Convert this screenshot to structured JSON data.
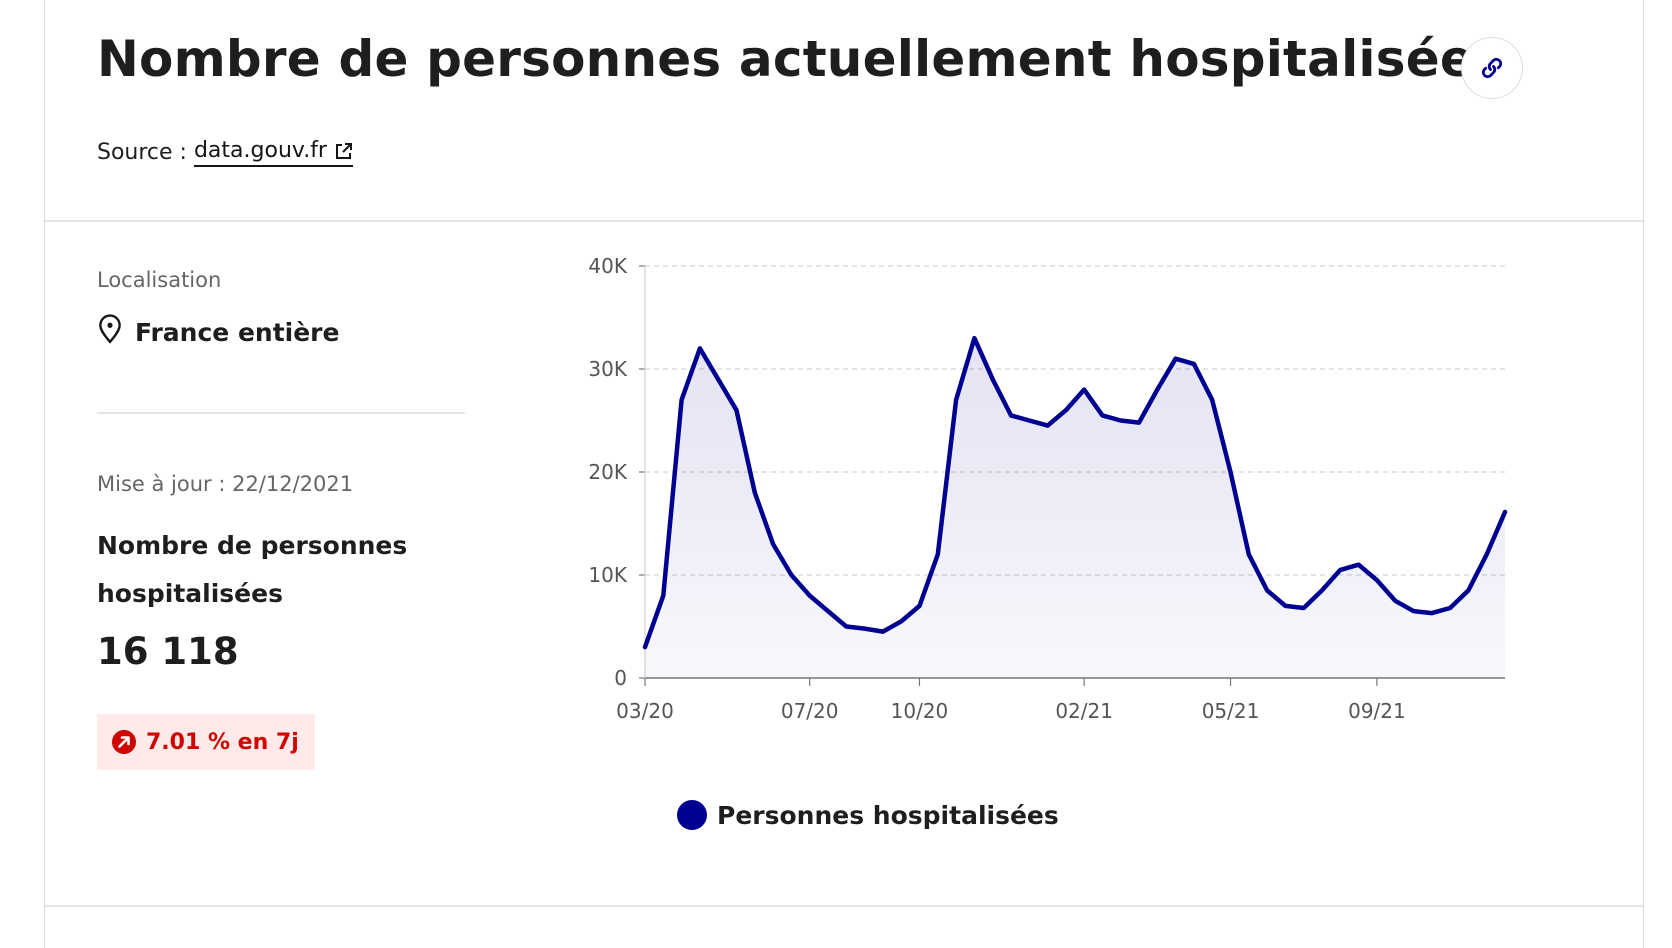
{
  "header": {
    "title": "Nombre de personnes actuellement hospitalisées",
    "link_icon": "link-icon",
    "source_label": "Source :",
    "source_link": "data.gouv.fr",
    "external_icon": "external-link-icon"
  },
  "sidebar": {
    "location_label": "Localisation",
    "location_icon": "map-pin-icon",
    "location_value": "France entière",
    "update_text": "Mise à jour : 22/12/2021",
    "metric_label": "Nombre de personnes hospitalisées",
    "metric_value": "16 118",
    "trend_icon": "arrow-up-right-icon",
    "trend_text": "7.01 % en 7j"
  },
  "colors": {
    "series": "#000091",
    "trend": "#ce0500",
    "trend_bg": "#ffe9e9"
  },
  "chart_data": {
    "type": "area",
    "title": "",
    "xlabel": "",
    "ylabel": "",
    "y_ticks": [
      "0",
      "10K",
      "20K",
      "30K",
      "40K"
    ],
    "ylim": [
      0,
      40000
    ],
    "x_ticks": [
      "03/20",
      "07/20",
      "10/20",
      "02/21",
      "05/21",
      "09/21"
    ],
    "grid": "horizontal dashed",
    "legend": "bottom",
    "series": [
      {
        "name": "Personnes hospitalisées",
        "x": [
          "03/20",
          "03/20",
          "04/20",
          "04/20",
          "04/20",
          "05/20",
          "05/20",
          "06/20",
          "06/20",
          "07/20",
          "07/20",
          "08/20",
          "08/20",
          "09/20",
          "09/20",
          "10/20",
          "10/20",
          "11/20",
          "11/20",
          "11/20",
          "12/20",
          "12/20",
          "01/21",
          "01/21",
          "02/21",
          "02/21",
          "02/21",
          "03/21",
          "03/21",
          "04/21",
          "04/21",
          "04/21",
          "05/21",
          "05/21",
          "06/21",
          "06/21",
          "07/21",
          "07/21",
          "08/21",
          "08/21",
          "09/21",
          "09/21",
          "10/21",
          "10/21",
          "11/21",
          "11/21",
          "12/21",
          "12/21"
        ],
        "values": [
          3000,
          8000,
          27000,
          32000,
          29000,
          26000,
          18000,
          13000,
          10000,
          8000,
          6500,
          5000,
          4800,
          4500,
          5500,
          7000,
          12000,
          27000,
          33000,
          29000,
          25500,
          25000,
          24500,
          26000,
          28000,
          25500,
          25000,
          24800,
          28000,
          31000,
          30500,
          27000,
          20000,
          12000,
          8500,
          7000,
          6800,
          8500,
          10500,
          11000,
          9500,
          7500,
          6500,
          6300,
          6800,
          8500,
          12000,
          16118
        ]
      }
    ]
  }
}
